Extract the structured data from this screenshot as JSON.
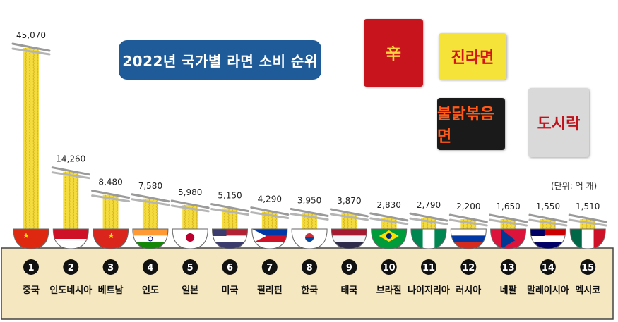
{
  "title": "2022년 국가별 라면 소비 순위",
  "unit": "(단위: 억 개)",
  "colors": {
    "title_bg": "#1f5b98",
    "noodle": "#f4dc3e",
    "noodle_dark": "#d7b520",
    "bowl_bg": "#f5e7c0",
    "bowl_border": "#555555",
    "rank_circle": "#111111"
  },
  "packages": [
    {
      "name": "shin-ramyun-package",
      "text": "辛",
      "bg": "#c8141c",
      "fg": "#ffd23f"
    },
    {
      "name": "jin-ramen-package",
      "text": "진라면",
      "bg": "#f6e33a",
      "fg": "#d5141a"
    },
    {
      "name": "buldak-package",
      "text": "불닭볶음면",
      "bg": "#1a1a1a",
      "fg": "#ff5a1a"
    },
    {
      "name": "dosirak-package",
      "text": "도시락",
      "bg": "#d9d9d9",
      "fg": "#c0111b"
    }
  ],
  "chart_data": {
    "type": "bar",
    "title": "2022년 국가별 라면 소비 순위",
    "unit": "(단위: 억 개)",
    "categories": [
      "중국",
      "인도네시아",
      "베트남",
      "인도",
      "일본",
      "미국",
      "필리핀",
      "한국",
      "태국",
      "브라질",
      "나이지리아",
      "러시아",
      "네팔",
      "말레이시아",
      "멕시코"
    ],
    "ranks": [
      "1",
      "2",
      "3",
      "4",
      "5",
      "6",
      "7",
      "8",
      "9",
      "10",
      "11",
      "12",
      "13",
      "14",
      "15"
    ],
    "values": [
      45070,
      14260,
      8480,
      7580,
      5980,
      5150,
      4290,
      3950,
      3870,
      2830,
      2790,
      2200,
      1650,
      1550,
      1510
    ],
    "value_labels": [
      "45,070",
      "14,260",
      "8,480",
      "7,580",
      "5,980",
      "5,150",
      "4,290",
      "3,950",
      "3,870",
      "2,830",
      "2,790",
      "2,200",
      "1,650",
      "1,550",
      "1,510"
    ],
    "flags": [
      "china",
      "indonesia",
      "vietnam",
      "india",
      "japan",
      "usa",
      "philippines",
      "korea",
      "thailand",
      "brazil",
      "nigeria",
      "russia",
      "nepal",
      "malaysia",
      "mexico"
    ]
  }
}
